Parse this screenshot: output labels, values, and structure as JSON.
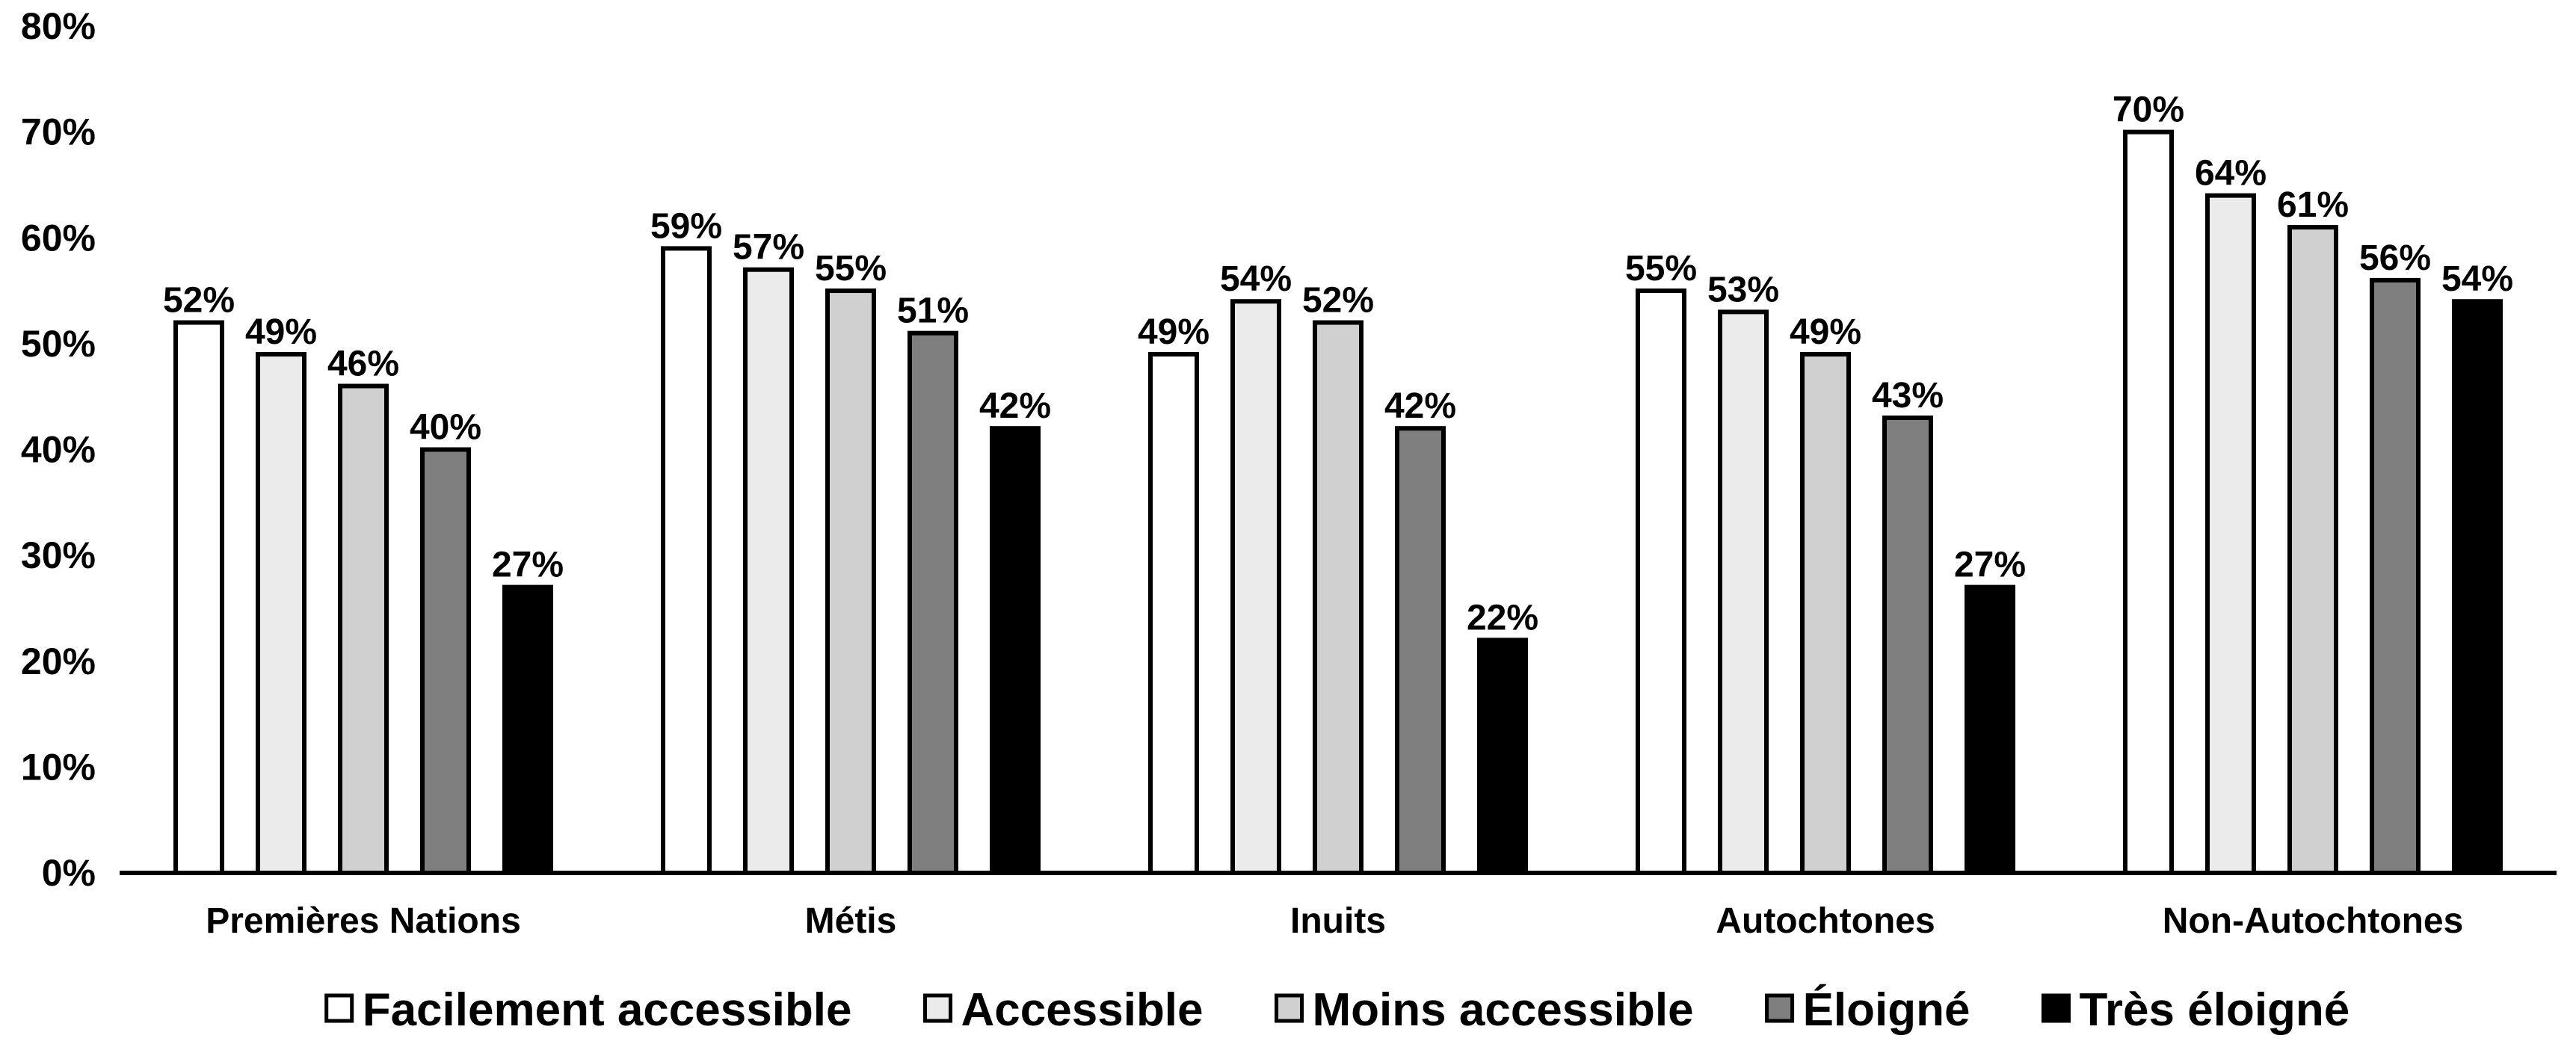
{
  "chart_data": {
    "type": "bar",
    "categories": [
      "Premières Nations",
      "Métis",
      "Inuits",
      "Autochtones",
      "Non-Autochtones"
    ],
    "series": [
      {
        "name": "Facilement accessible",
        "color": "#ffffff",
        "values": [
          52,
          59,
          49,
          55,
          70
        ],
        "labels": [
          "52%",
          "59%",
          "49%",
          "55%",
          "70%"
        ]
      },
      {
        "name": "Accessible",
        "color": "#ebebeb",
        "values": [
          49,
          57,
          54,
          53,
          64
        ],
        "labels": [
          "49%",
          "57%",
          "54%",
          "53%",
          "64%"
        ]
      },
      {
        "name": "Moins accessible",
        "color": "#d0d0d0",
        "values": [
          46,
          55,
          52,
          49,
          61
        ],
        "labels": [
          "46%",
          "55%",
          "52%",
          "49%",
          "61%"
        ]
      },
      {
        "name": "Éloigné",
        "color": "#7f7f7f",
        "values": [
          40,
          51,
          42,
          43,
          56
        ],
        "labels": [
          "40%",
          "51%",
          "42%",
          "43%",
          "56%"
        ]
      },
      {
        "name": "Très éloigné",
        "color": "#000000",
        "values": [
          27,
          42,
          22,
          27,
          54
        ],
        "labels": [
          "27%",
          "42%",
          "22%",
          "27%",
          "54%"
        ]
      }
    ],
    "ylim": [
      0,
      80
    ],
    "yticks": [
      0,
      10,
      20,
      30,
      40,
      50,
      60,
      70,
      80
    ],
    "ytick_labels": [
      "0%",
      "10%",
      "20%",
      "30%",
      "40%",
      "50%",
      "60%",
      "70%",
      "80%"
    ],
    "grid": false,
    "legend_position": "bottom"
  }
}
